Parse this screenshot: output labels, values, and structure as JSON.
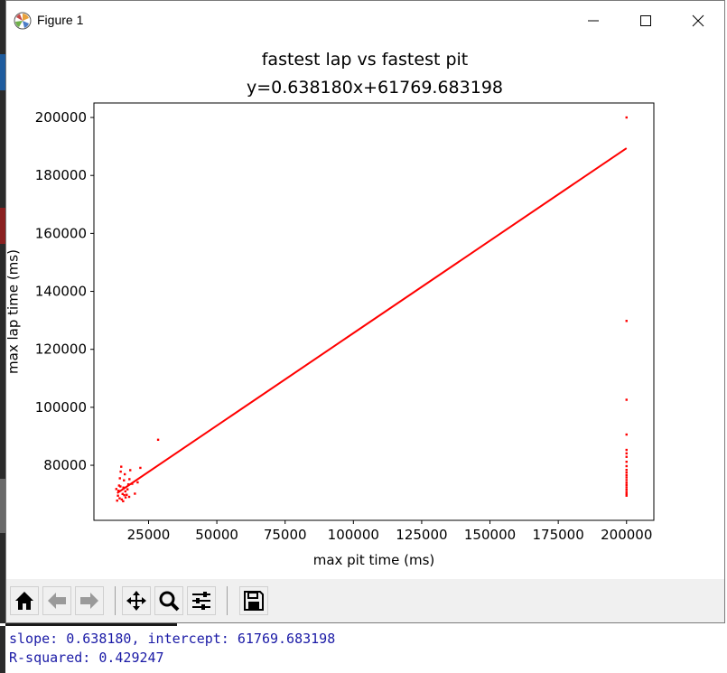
{
  "window": {
    "title": "Figure 1",
    "minimize_label": "Minimize",
    "maximize_label": "Maximize",
    "close_label": "Close"
  },
  "toolbar": {
    "buttons": [
      {
        "name": "home",
        "icon": "home-icon"
      },
      {
        "name": "back",
        "icon": "arrow-left-icon"
      },
      {
        "name": "forward",
        "icon": "arrow-right-icon"
      },
      {
        "name": "pan",
        "icon": "move-icon"
      },
      {
        "name": "zoom",
        "icon": "magnifier-icon"
      },
      {
        "name": "configure",
        "icon": "sliders-icon"
      },
      {
        "name": "save",
        "icon": "floppy-icon"
      }
    ]
  },
  "console": {
    "line1": "slope: 0.638180, intercept: 61769.683198",
    "line2": "R-squared: 0.429247"
  },
  "colors": {
    "marker": "#ff0000",
    "fit_line": "#ff0000",
    "console_text": "#1a1aa6"
  },
  "chart_data": {
    "type": "scatter",
    "title": "fastest lap vs fastest pit",
    "subtitle": "y=0.638180x+61769.683198",
    "xlabel": "max pit time (ms)",
    "ylabel": "max lap time (ms)",
    "xlim": [
      5000,
      210000
    ],
    "ylim": [
      61000,
      205000
    ],
    "xticks": [
      25000,
      50000,
      75000,
      100000,
      125000,
      150000,
      175000,
      200000
    ],
    "yticks": [
      80000,
      100000,
      120000,
      140000,
      160000,
      180000,
      200000
    ],
    "grid": false,
    "series": [
      {
        "kind": "points",
        "points": [
          [
            13500,
            67800
          ],
          [
            13800,
            69500
          ],
          [
            14000,
            71200
          ],
          [
            14200,
            73000
          ],
          [
            14500,
            75500
          ],
          [
            14800,
            77800
          ],
          [
            15000,
            79500
          ],
          [
            15200,
            68200
          ],
          [
            15500,
            70100
          ],
          [
            15800,
            72300
          ],
          [
            16000,
            74800
          ],
          [
            16300,
            76900
          ],
          [
            16600,
            68900
          ],
          [
            17000,
            69800
          ],
          [
            17300,
            71700
          ],
          [
            17600,
            73400
          ],
          [
            18000,
            75200
          ],
          [
            18300,
            78300
          ],
          [
            14400,
            68600
          ],
          [
            15700,
            67600
          ],
          [
            16500,
            71000
          ],
          [
            17900,
            69100
          ],
          [
            19000,
            73600
          ],
          [
            20000,
            70200
          ],
          [
            21000,
            74100
          ],
          [
            22000,
            79100
          ],
          [
            28500,
            88800
          ],
          [
            13200,
            71800
          ],
          [
            14700,
            72700
          ],
          [
            16100,
            69700
          ],
          [
            200000,
            200000
          ],
          [
            200000,
            129800
          ],
          [
            200000,
            102600
          ],
          [
            200000,
            90600
          ],
          [
            200000,
            85300
          ],
          [
            200000,
            84100
          ],
          [
            200000,
            82900
          ],
          [
            200000,
            81200
          ],
          [
            200000,
            79700
          ],
          [
            200000,
            78400
          ],
          [
            200000,
            77500
          ],
          [
            200000,
            76600
          ],
          [
            200000,
            75800
          ],
          [
            200000,
            74900
          ],
          [
            200000,
            74000
          ],
          [
            200000,
            73200
          ],
          [
            200000,
            72400
          ],
          [
            200000,
            71600
          ],
          [
            200000,
            70800
          ],
          [
            200000,
            70100
          ],
          [
            200000,
            69500
          ]
        ]
      },
      {
        "kind": "fit_line",
        "slope": 0.63818,
        "intercept": 61769.683198,
        "x_range": [
          13500,
          200000
        ]
      }
    ]
  }
}
